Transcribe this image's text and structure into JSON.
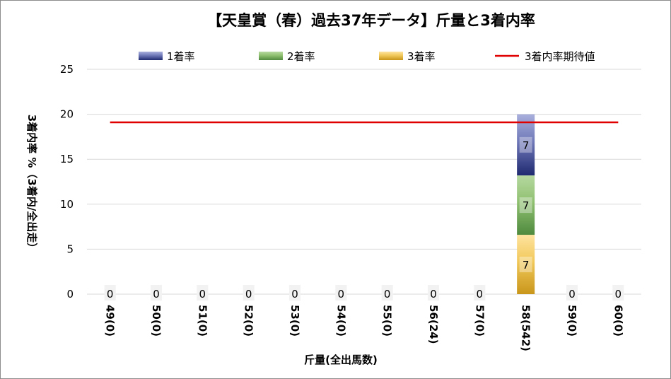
{
  "chart_data": {
    "type": "bar",
    "title": "【天皇賞（春）過去37年データ】斤量と3着内率",
    "xlabel": "斤量(全出馬数)",
    "ylabel": "3着内率 %（3着内/全出走）",
    "ylim": [
      0,
      25
    ],
    "yticks": [
      0,
      5,
      10,
      15,
      20,
      25
    ],
    "grid": true,
    "legend_position": "top",
    "categories": [
      "49(0)",
      "50(0)",
      "51(0)",
      "52(0)",
      "53(0)",
      "54(0)",
      "55(0)",
      "56(24)",
      "57(0)",
      "58(542)",
      "59(0)",
      "60(0)"
    ],
    "stacked": true,
    "series": [
      {
        "name": "3着率",
        "values": [
          0,
          0,
          0,
          0,
          0,
          0,
          0,
          0,
          0,
          6.6,
          0,
          0
        ],
        "labels": [
          "0",
          "0",
          "0",
          "0",
          "0",
          "0",
          "0",
          "0",
          "0",
          "7",
          "0",
          "0"
        ],
        "color": "#d9a520"
      },
      {
        "name": "2着率",
        "values": [
          0,
          0,
          0,
          0,
          0,
          0,
          0,
          0,
          0,
          6.6,
          0,
          0
        ],
        "labels": [
          "",
          "",
          "",
          "",
          "",
          "",
          "",
          "",
          "",
          "7",
          "",
          ""
        ],
        "color": "#5f9e4f"
      },
      {
        "name": "1着率",
        "values": [
          0,
          0,
          0,
          0,
          0,
          0,
          0,
          0,
          0,
          6.8,
          0,
          0
        ],
        "labels": [
          "",
          "",
          "",
          "",
          "",
          "",
          "",
          "",
          "",
          "7",
          "",
          ""
        ],
        "color": "#2e3a87"
      }
    ],
    "reference_line": {
      "name": "3着内率期待値",
      "value": 19.1,
      "color": "#e00000"
    },
    "legend_order": [
      "1着率",
      "2着率",
      "3着率",
      "3着内率期待値"
    ]
  }
}
